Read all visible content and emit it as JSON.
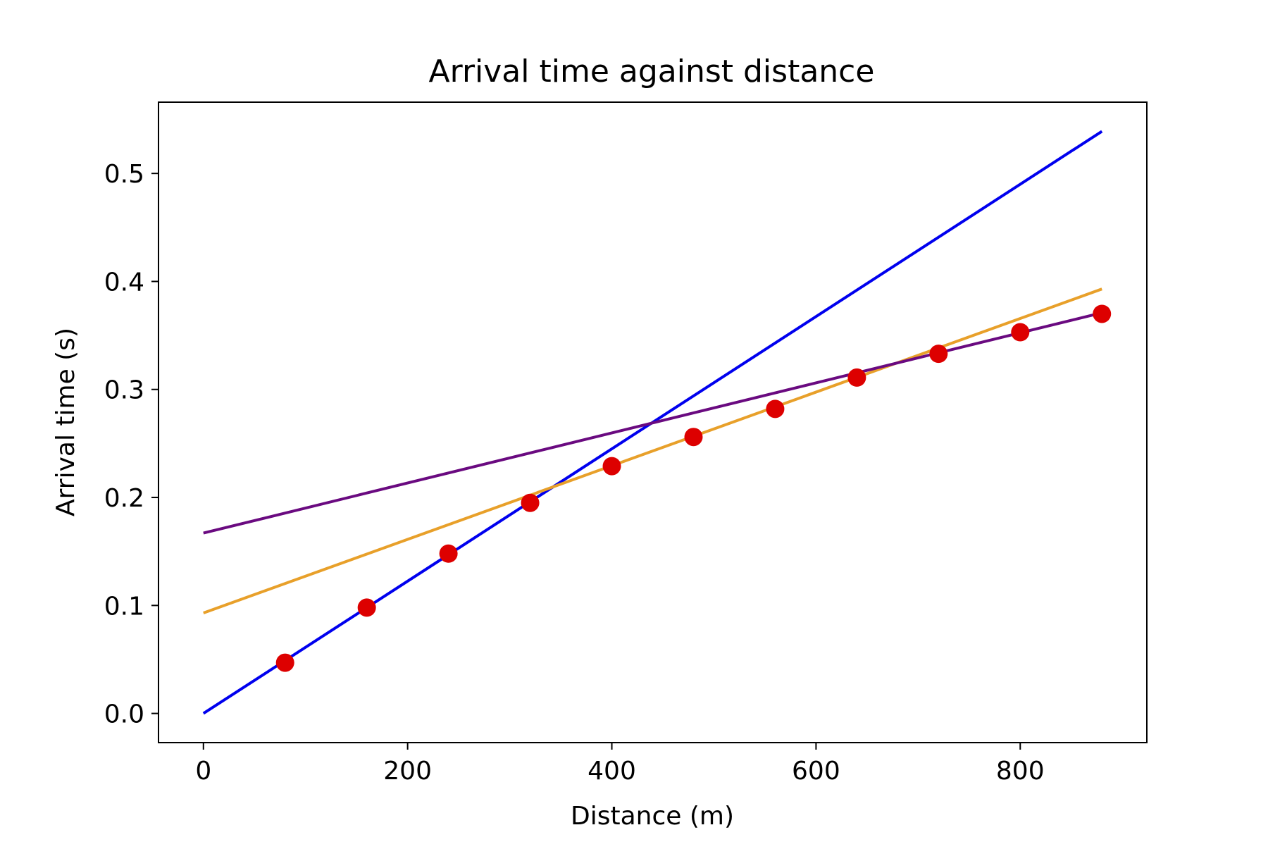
{
  "chart_data": {
    "type": "scatter",
    "title": "Arrival time against distance",
    "xlabel": "Distance (m)",
    "ylabel": "Arrival time (s)",
    "xlim": [
      -44,
      924
    ],
    "ylim": [
      -0.027,
      0.566
    ],
    "xticks": [
      0,
      200,
      400,
      600,
      800
    ],
    "xtick_labels": [
      "0",
      "200",
      "400",
      "600",
      "800"
    ],
    "yticks": [
      0.0,
      0.1,
      0.2,
      0.3,
      0.4,
      0.5
    ],
    "ytick_labels": [
      "0.0",
      "0.1",
      "0.2",
      "0.3",
      "0.4",
      "0.5"
    ],
    "grid": false,
    "legend": "none",
    "points": {
      "color": "#dd0000",
      "x": [
        80,
        160,
        240,
        320,
        400,
        480,
        560,
        640,
        720,
        800,
        880
      ],
      "y": [
        0.047,
        0.098,
        0.148,
        0.195,
        0.229,
        0.256,
        0.282,
        0.311,
        0.333,
        0.353,
        0.37
      ]
    },
    "lines": [
      {
        "color": "#0000ee",
        "x": [
          0,
          880
        ],
        "y": [
          0.0,
          0.539
        ]
      },
      {
        "color": "#e8a02a",
        "x": [
          0,
          880
        ],
        "y": [
          0.093,
          0.393
        ]
      },
      {
        "color": "#6a0a80",
        "x": [
          0,
          880
        ],
        "y": [
          0.167,
          0.371
        ]
      }
    ]
  }
}
